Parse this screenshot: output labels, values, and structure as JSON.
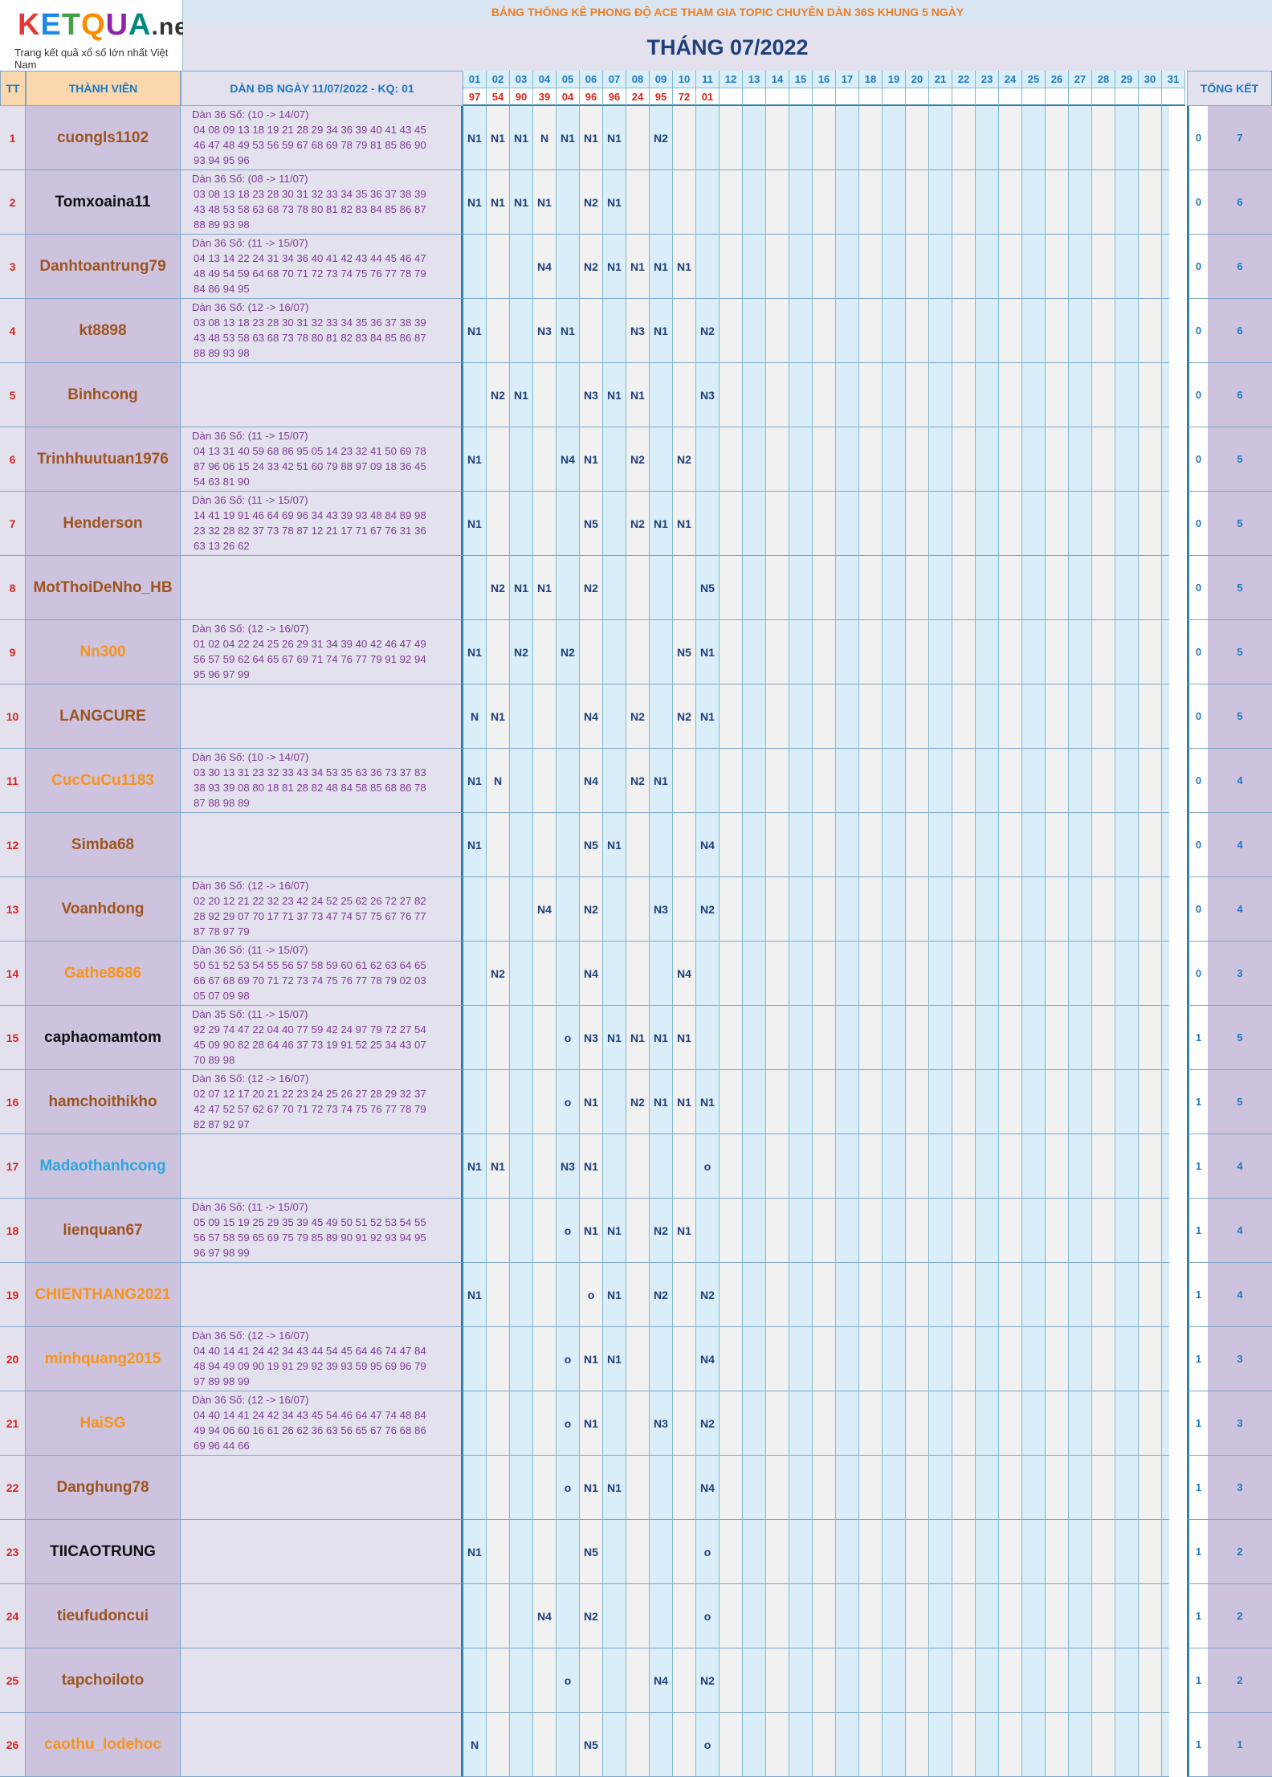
{
  "logo": {
    "word": [
      "K",
      "E",
      "T",
      "Q",
      "U",
      "A"
    ],
    "suffix": ".net",
    "tagline": "Trang kết quả xổ số lớn nhất Việt Nam"
  },
  "banner": "BẢNG THỐNG KÊ PHONG ĐỘ ACE THAM GIA TOPIC CHUYÊN DÀN 36S KHUNG 5 NGÀY",
  "month": "THÁNG 07/2022",
  "headers": {
    "tt": "TT",
    "member": "THÀNH VIÊN",
    "dan": "DÀN ĐB NGÀY 11/07/2022 - KQ: 01",
    "total": "TỔNG KẾT"
  },
  "days": [
    "01",
    "02",
    "03",
    "04",
    "05",
    "06",
    "07",
    "08",
    "09",
    "10",
    "11",
    "12",
    "13",
    "14",
    "15",
    "16",
    "17",
    "18",
    "19",
    "20",
    "21",
    "22",
    "23",
    "24",
    "25",
    "26",
    "27",
    "28",
    "29",
    "30",
    "31"
  ],
  "results": [
    "97",
    "54",
    "90",
    "39",
    "04",
    "96",
    "96",
    "24",
    "95",
    "72",
    "01",
    "",
    "",
    "",
    "",
    "",
    "",
    "",
    "",
    "",
    "",
    "",
    "",
    "",
    "",
    "",
    "",
    "",
    "",
    "",
    ""
  ],
  "colors": {
    "brown": "#9c5420",
    "orange": "#f7941d",
    "black": "#111111",
    "blue": "#29a8e0"
  },
  "rows": [
    {
      "tt": "1",
      "name": "cuongls1102",
      "color": "brown",
      "dan": [
        "Dàn 36 Số: (10 -> 14/07)",
        "04 08 09 13 18 19 21 28 29 34 36 39 40 41 43 45",
        "46 47 48 49 53 56 59 67 68 69 78 79 81 85 86 90",
        "93 94 95 96"
      ],
      "marks": [
        "N1",
        "N1",
        "N1",
        "N",
        "N1",
        "N1",
        "N1",
        "",
        "N2",
        "",
        "",
        "",
        "",
        "",
        "",
        "",
        "",
        "",
        "",
        "",
        "",
        "",
        "",
        "",
        "",
        "",
        "",
        "",
        "",
        "",
        ""
      ],
      "s1": "0",
      "s2": "7"
    },
    {
      "tt": "2",
      "name": "Tomxoaina11",
      "color": "black",
      "dan": [
        "Dàn 36 Số: (08 -> 11/07)",
        "03 08 13 18 23 28 30 31 32 33 34 35 36 37 38 39",
        "43 48 53 58 63 68 73 78 80 81 82 83 84 85 86 87",
        "88 89 93 98"
      ],
      "marks": [
        "N1",
        "N1",
        "N1",
        "N1",
        "",
        "N2",
        "N1",
        "",
        "",
        "",
        "",
        "",
        "",
        "",
        "",
        "",
        "",
        "",
        "",
        "",
        "",
        "",
        "",
        "",
        "",
        "",
        "",
        "",
        "",
        "",
        ""
      ],
      "s1": "0",
      "s2": "6"
    },
    {
      "tt": "3",
      "name": "Danhtoantrung79",
      "color": "brown",
      "dan": [
        "Dàn 36 Số: (11 -> 15/07)",
        "04 13 14 22 24 31 34 36 40 41 42 43 44 45 46 47",
        "48 49 54 59 64 68 70 71 72 73 74 75 76 77 78 79",
        "84 86 94 95"
      ],
      "marks": [
        "",
        "",
        "",
        "N4",
        "",
        "N2",
        "N1",
        "N1",
        "N1",
        "N1",
        "",
        "",
        "",
        "",
        "",
        "",
        "",
        "",
        "",
        "",
        "",
        "",
        "",
        "",
        "",
        "",
        "",
        "",
        "",
        "",
        ""
      ],
      "s1": "0",
      "s2": "6"
    },
    {
      "tt": "4",
      "name": "kt8898",
      "color": "brown",
      "dan": [
        "Dàn 36 Số: (12 -> 16/07)",
        "03 08 13 18 23 28 30 31 32 33 34 35 36 37 38 39",
        "43 48 53 58 63 68 73 78 80 81 82 83 84 85 86 87",
        "88 89 93 98"
      ],
      "marks": [
        "N1",
        "",
        "",
        "N3",
        "N1",
        "",
        "",
        "N3",
        "N1",
        "",
        "N2",
        "",
        "",
        "",
        "",
        "",
        "",
        "",
        "",
        "",
        "",
        "",
        "",
        "",
        "",
        "",
        "",
        "",
        "",
        "",
        ""
      ],
      "s1": "0",
      "s2": "6"
    },
    {
      "tt": "5",
      "name": "Binhcong",
      "color": "brown",
      "dan": [],
      "marks": [
        "",
        "N2",
        "N1",
        "",
        "",
        "N3",
        "N1",
        "N1",
        "",
        "",
        "N3",
        "",
        "",
        "",
        "",
        "",
        "",
        "",
        "",
        "",
        "",
        "",
        "",
        "",
        "",
        "",
        "",
        "",
        "",
        "",
        ""
      ],
      "s1": "0",
      "s2": "6"
    },
    {
      "tt": "6",
      "name": "Trinhhuutuan1976",
      "color": "brown",
      "dan": [
        "Dàn 36 Số: (11 -> 15/07)",
        "04 13 31 40 59 68 86 95 05 14 23 32 41 50 69 78",
        "87 96 06 15 24 33 42 51 60 79 88 97 09 18 36 45",
        "54 63 81 90"
      ],
      "marks": [
        "N1",
        "",
        "",
        "",
        "N4",
        "N1",
        "",
        "N2",
        "",
        "N2",
        "",
        "",
        "",
        "",
        "",
        "",
        "",
        "",
        "",
        "",
        "",
        "",
        "",
        "",
        "",
        "",
        "",
        "",
        "",
        "",
        ""
      ],
      "s1": "0",
      "s2": "5"
    },
    {
      "tt": "7",
      "name": "Henderson",
      "color": "brown",
      "dan": [
        "Dàn 36 Số: (11 -> 15/07)",
        "14 41 19 91 46 64 69 96 34 43 39 93 48 84 89 98",
        "23 32 28 82 37 73 78 87 12 21 17 71 67 76 31 36",
        "63 13 26 62"
      ],
      "marks": [
        "N1",
        "",
        "",
        "",
        "",
        "N5",
        "",
        "N2",
        "N1",
        "N1",
        "",
        "",
        "",
        "",
        "",
        "",
        "",
        "",
        "",
        "",
        "",
        "",
        "",
        "",
        "",
        "",
        "",
        "",
        "",
        "",
        ""
      ],
      "s1": "0",
      "s2": "5"
    },
    {
      "tt": "8",
      "name": "MotThoiDeNho_HB",
      "color": "brown",
      "dan": [],
      "marks": [
        "",
        "N2",
        "N1",
        "N1",
        "",
        "N2",
        "",
        "",
        "",
        "",
        "N5",
        "",
        "",
        "",
        "",
        "",
        "",
        "",
        "",
        "",
        "",
        "",
        "",
        "",
        "",
        "",
        "",
        "",
        "",
        "",
        ""
      ],
      "s1": "0",
      "s2": "5"
    },
    {
      "tt": "9",
      "name": "Nn300",
      "color": "orange",
      "dan": [
        "Dàn 36 Số: (12 -> 16/07)",
        "01 02 04 22 24 25 26 29 31 34 39 40 42 46 47 49",
        "56 57 59 62 64 65 67 69 71 74 76 77 79 91 92 94",
        "95 96 97 99"
      ],
      "marks": [
        "N1",
        "",
        "N2",
        "",
        "N2",
        "",
        "",
        "",
        "",
        "N5",
        "N1",
        "",
        "",
        "",
        "",
        "",
        "",
        "",
        "",
        "",
        "",
        "",
        "",
        "",
        "",
        "",
        "",
        "",
        "",
        "",
        ""
      ],
      "s1": "0",
      "s2": "5"
    },
    {
      "tt": "10",
      "name": "LANGCURE",
      "color": "brown",
      "dan": [],
      "marks": [
        "N",
        "N1",
        "",
        "",
        "",
        "N4",
        "",
        "N2",
        "",
        "N2",
        "N1",
        "",
        "",
        "",
        "",
        "",
        "",
        "",
        "",
        "",
        "",
        "",
        "",
        "",
        "",
        "",
        "",
        "",
        "",
        "",
        ""
      ],
      "s1": "0",
      "s2": "5"
    },
    {
      "tt": "11",
      "name": "CucCuCu1183",
      "color": "orange",
      "dan": [
        "Dàn 36 Số: (10 -> 14/07)",
        "03 30 13 31 23 32 33 43 34 53 35 63 36 73 37 83",
        "38 93 39 08 80 18 81 28 82 48 84 58 85 68 86 78",
        "87 88 98 89"
      ],
      "marks": [
        "N1",
        "N",
        "",
        "",
        "",
        "N4",
        "",
        "N2",
        "N1",
        "",
        "",
        "",
        "",
        "",
        "",
        "",
        "",
        "",
        "",
        "",
        "",
        "",
        "",
        "",
        "",
        "",
        "",
        "",
        "",
        "",
        ""
      ],
      "s1": "0",
      "s2": "4"
    },
    {
      "tt": "12",
      "name": "Simba68",
      "color": "brown",
      "dan": [],
      "marks": [
        "N1",
        "",
        "",
        "",
        "",
        "N5",
        "N1",
        "",
        "",
        "",
        "N4",
        "",
        "",
        "",
        "",
        "",
        "",
        "",
        "",
        "",
        "",
        "",
        "",
        "",
        "",
        "",
        "",
        "",
        "",
        "",
        ""
      ],
      "s1": "0",
      "s2": "4"
    },
    {
      "tt": "13",
      "name": "Voanhdong",
      "color": "brown",
      "dan": [
        "Dàn 36 Số: (12 -> 16/07)",
        "02 20 12 21 22 32 23 42 24 52 25 62 26 72 27 82",
        "28 92 29 07 70 17 71 37 73 47 74 57 75 67 76 77",
        "87 78 97 79"
      ],
      "marks": [
        "",
        "",
        "",
        "N4",
        "",
        "N2",
        "",
        "",
        "N3",
        "",
        "N2",
        "",
        "",
        "",
        "",
        "",
        "",
        "",
        "",
        "",
        "",
        "",
        "",
        "",
        "",
        "",
        "",
        "",
        "",
        "",
        ""
      ],
      "s1": "0",
      "s2": "4"
    },
    {
      "tt": "14",
      "name": "Gathe8686",
      "color": "orange",
      "dan": [
        "Dàn 36 Số: (11 -> 15/07)",
        "50 51 52 53 54 55 56 57 58 59 60 61 62 63 64 65",
        "66 67 68 69 70 71 72 73 74 75 76 77 78 79 02 03",
        "05 07 09 98"
      ],
      "marks": [
        "",
        "N2",
        "",
        "",
        "",
        "N4",
        "",
        "",
        "",
        "N4",
        "",
        "",
        "",
        "",
        "",
        "",
        "",
        "",
        "",
        "",
        "",
        "",
        "",
        "",
        "",
        "",
        "",
        "",
        "",
        "",
        ""
      ],
      "s1": "0",
      "s2": "3"
    },
    {
      "tt": "15",
      "name": "caphaomamtom",
      "color": "black",
      "dan": [
        "Dàn 35 Số: (11 -> 15/07)",
        "92 29 74 47 22 04 40 77 59 42 24 97 79 72 27 54",
        "45 09 90 82 28 64 46 37 73 19 91 52 25 34 43 07",
        "70 89 98"
      ],
      "marks": [
        "",
        "",
        "",
        "",
        "o",
        "N3",
        "N1",
        "N1",
        "N1",
        "N1",
        "",
        "",
        "",
        "",
        "",
        "",
        "",
        "",
        "",
        "",
        "",
        "",
        "",
        "",
        "",
        "",
        "",
        "",
        "",
        "",
        ""
      ],
      "s1": "1",
      "s2": "5"
    },
    {
      "tt": "16",
      "name": "hamchoithikho",
      "color": "brown",
      "dan": [
        "Dàn 36 Số: (12 -> 16/07)",
        "02 07 12 17 20 21 22 23 24 25 26 27 28 29 32 37",
        "42 47 52 57 62 67 70 71 72 73 74 75 76 77 78 79",
        "82 87 92 97"
      ],
      "marks": [
        "",
        "",
        "",
        "",
        "o",
        "N1",
        "",
        "N2",
        "N1",
        "N1",
        "N1",
        "",
        "",
        "",
        "",
        "",
        "",
        "",
        "",
        "",
        "",
        "",
        "",
        "",
        "",
        "",
        "",
        "",
        "",
        "",
        ""
      ],
      "s1": "1",
      "s2": "5"
    },
    {
      "tt": "17",
      "name": "Madaothanhcong",
      "color": "blue",
      "dan": [],
      "marks": [
        "N1",
        "N1",
        "",
        "",
        "N3",
        "N1",
        "",
        "",
        "",
        "",
        "o",
        "",
        "",
        "",
        "",
        "",
        "",
        "",
        "",
        "",
        "",
        "",
        "",
        "",
        "",
        "",
        "",
        "",
        "",
        "",
        ""
      ],
      "s1": "1",
      "s2": "4"
    },
    {
      "tt": "18",
      "name": "lienquan67",
      "color": "brown",
      "dan": [
        "Dàn 36 Số: (11 -> 15/07)",
        "05 09 15 19 25 29 35 39 45 49 50 51 52 53 54 55",
        "56 57 58 59 65 69 75 79 85 89 90 91 92 93 94 95",
        "96 97 98 99"
      ],
      "marks": [
        "",
        "",
        "",
        "",
        "o",
        "N1",
        "N1",
        "",
        "N2",
        "N1",
        "",
        "",
        "",
        "",
        "",
        "",
        "",
        "",
        "",
        "",
        "",
        "",
        "",
        "",
        "",
        "",
        "",
        "",
        "",
        "",
        ""
      ],
      "s1": "1",
      "s2": "4"
    },
    {
      "tt": "19",
      "name": "CHIENTHANG2021",
      "color": "orange",
      "dan": [],
      "marks": [
        "N1",
        "",
        "",
        "",
        "",
        "o",
        "N1",
        "",
        "N2",
        "",
        "N2",
        "",
        "",
        "",
        "",
        "",
        "",
        "",
        "",
        "",
        "",
        "",
        "",
        "",
        "",
        "",
        "",
        "",
        "",
        "",
        ""
      ],
      "s1": "1",
      "s2": "4"
    },
    {
      "tt": "20",
      "name": "minhquang2015",
      "color": "orange",
      "dan": [
        "Dàn 36 Số: (12 -> 16/07)",
        "04 40 14 41 24 42 34 43 44 54 45 64 46 74 47 84",
        "48 94 49 09 90 19 91 29 92 39 93 59 95 69 96 79",
        "97 89 98 99"
      ],
      "marks": [
        "",
        "",
        "",
        "",
        "o",
        "N1",
        "N1",
        "",
        "",
        "",
        "N4",
        "",
        "",
        "",
        "",
        "",
        "",
        "",
        "",
        "",
        "",
        "",
        "",
        "",
        "",
        "",
        "",
        "",
        "",
        "",
        ""
      ],
      "s1": "1",
      "s2": "3"
    },
    {
      "tt": "21",
      "name": "HaiSG",
      "color": "orange",
      "dan": [
        "Dàn 36 Số: (12 -> 16/07)",
        "04 40 14 41 24 42 34 43 45 54 46 64 47 74 48 84",
        "49 94 06 60 16 61 26 62 36 63 56 65 67 76 68 86",
        "69 96 44 66"
      ],
      "marks": [
        "",
        "",
        "",
        "",
        "o",
        "N1",
        "",
        "",
        "N3",
        "",
        "N2",
        "",
        "",
        "",
        "",
        "",
        "",
        "",
        "",
        "",
        "",
        "",
        "",
        "",
        "",
        "",
        "",
        "",
        "",
        "",
        ""
      ],
      "s1": "1",
      "s2": "3"
    },
    {
      "tt": "22",
      "name": "Danghung78",
      "color": "brown",
      "dan": [],
      "marks": [
        "",
        "",
        "",
        "",
        "o",
        "N1",
        "N1",
        "",
        "",
        "",
        "N4",
        "",
        "",
        "",
        "",
        "",
        "",
        "",
        "",
        "",
        "",
        "",
        "",
        "",
        "",
        "",
        "",
        "",
        "",
        "",
        ""
      ],
      "s1": "1",
      "s2": "3"
    },
    {
      "tt": "23",
      "name": "TIICAOTRUNG",
      "color": "black",
      "dan": [],
      "marks": [
        "N1",
        "",
        "",
        "",
        "",
        "N5",
        "",
        "",
        "",
        "",
        "o",
        "",
        "",
        "",
        "",
        "",
        "",
        "",
        "",
        "",
        "",
        "",
        "",
        "",
        "",
        "",
        "",
        "",
        "",
        "",
        ""
      ],
      "s1": "1",
      "s2": "2"
    },
    {
      "tt": "24",
      "name": "tieufudoncui",
      "color": "brown",
      "dan": [],
      "marks": [
        "",
        "",
        "",
        "N4",
        "",
        "N2",
        "",
        "",
        "",
        "",
        "o",
        "",
        "",
        "",
        "",
        "",
        "",
        "",
        "",
        "",
        "",
        "",
        "",
        "",
        "",
        "",
        "",
        "",
        "",
        "",
        ""
      ],
      "s1": "1",
      "s2": "2"
    },
    {
      "tt": "25",
      "name": "tapchoiloto",
      "color": "brown",
      "dan": [],
      "marks": [
        "",
        "",
        "",
        "",
        "o",
        "",
        "",
        "",
        "N4",
        "",
        "N2",
        "",
        "",
        "",
        "",
        "",
        "",
        "",
        "",
        "",
        "",
        "",
        "",
        "",
        "",
        "",
        "",
        "",
        "",
        "",
        ""
      ],
      "s1": "1",
      "s2": "2"
    },
    {
      "tt": "26",
      "name": "caothu_lodehoc",
      "color": "orange",
      "dan": [],
      "marks": [
        "N",
        "",
        "",
        "",
        "",
        "N5",
        "",
        "",
        "",
        "",
        "o",
        "",
        "",
        "",
        "",
        "",
        "",
        "",
        "",
        "",
        "",
        "",
        "",
        "",
        "",
        "",
        "",
        "",
        "",
        "",
        ""
      ],
      "s1": "1",
      "s2": "1"
    }
  ]
}
